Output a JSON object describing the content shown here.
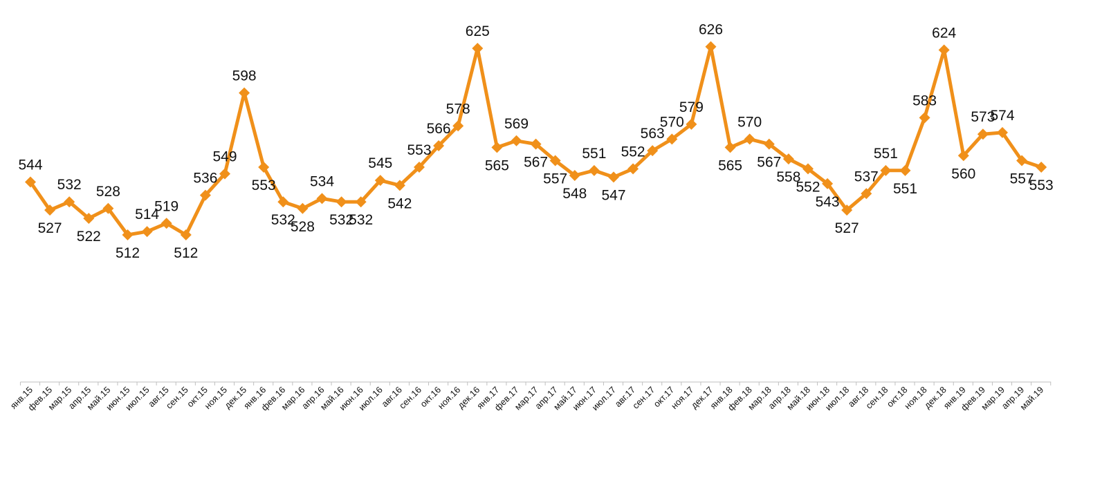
{
  "chart_data": {
    "type": "line",
    "title": "",
    "xlabel": "",
    "ylabel": "",
    "categories": [
      "янв.15",
      "фев.15",
      "мар.15",
      "апр.15",
      "май.15",
      "июн.15",
      "июл.15",
      "авг.15",
      "сен.15",
      "окт.15",
      "ноя.15",
      "дек.15",
      "янв.16",
      "фев.16",
      "мар.16",
      "апр.16",
      "май.16",
      "июн.16",
      "июл.16",
      "авг.16",
      "сен.16",
      "окт.16",
      "ноя.16",
      "дек.16",
      "янв.17",
      "фев.17",
      "мар.17",
      "апр.17",
      "май.17",
      "июн.17",
      "июл.17",
      "авг.17",
      "сен.17",
      "окт.17",
      "ноя.17",
      "дек.17",
      "янв.18",
      "фев.18",
      "мар.18",
      "апр.18",
      "май.18",
      "июн.18",
      "июл.18",
      "авг.18",
      "сен.18",
      "окт.18",
      "ноя.18",
      "дек.18",
      "янв.19",
      "фев.19",
      "мар.19",
      "апр.19",
      "май.19"
    ],
    "series": [
      {
        "values": [
          544,
          527,
          532,
          522,
          528,
          512,
          514,
          519,
          512,
          536,
          549,
          598,
          553,
          532,
          528,
          534,
          532,
          532,
          545,
          542,
          553,
          566,
          578,
          625,
          565,
          569,
          567,
          557,
          548,
          551,
          547,
          552,
          563,
          570,
          579,
          626,
          565,
          570,
          567,
          558,
          552,
          543,
          527,
          537,
          551,
          551,
          583,
          624,
          560,
          573,
          574,
          557,
          553
        ],
        "color": "#F0901A",
        "marker": "diamond"
      }
    ],
    "grid": false,
    "legend": "none",
    "data_labels": true
  }
}
